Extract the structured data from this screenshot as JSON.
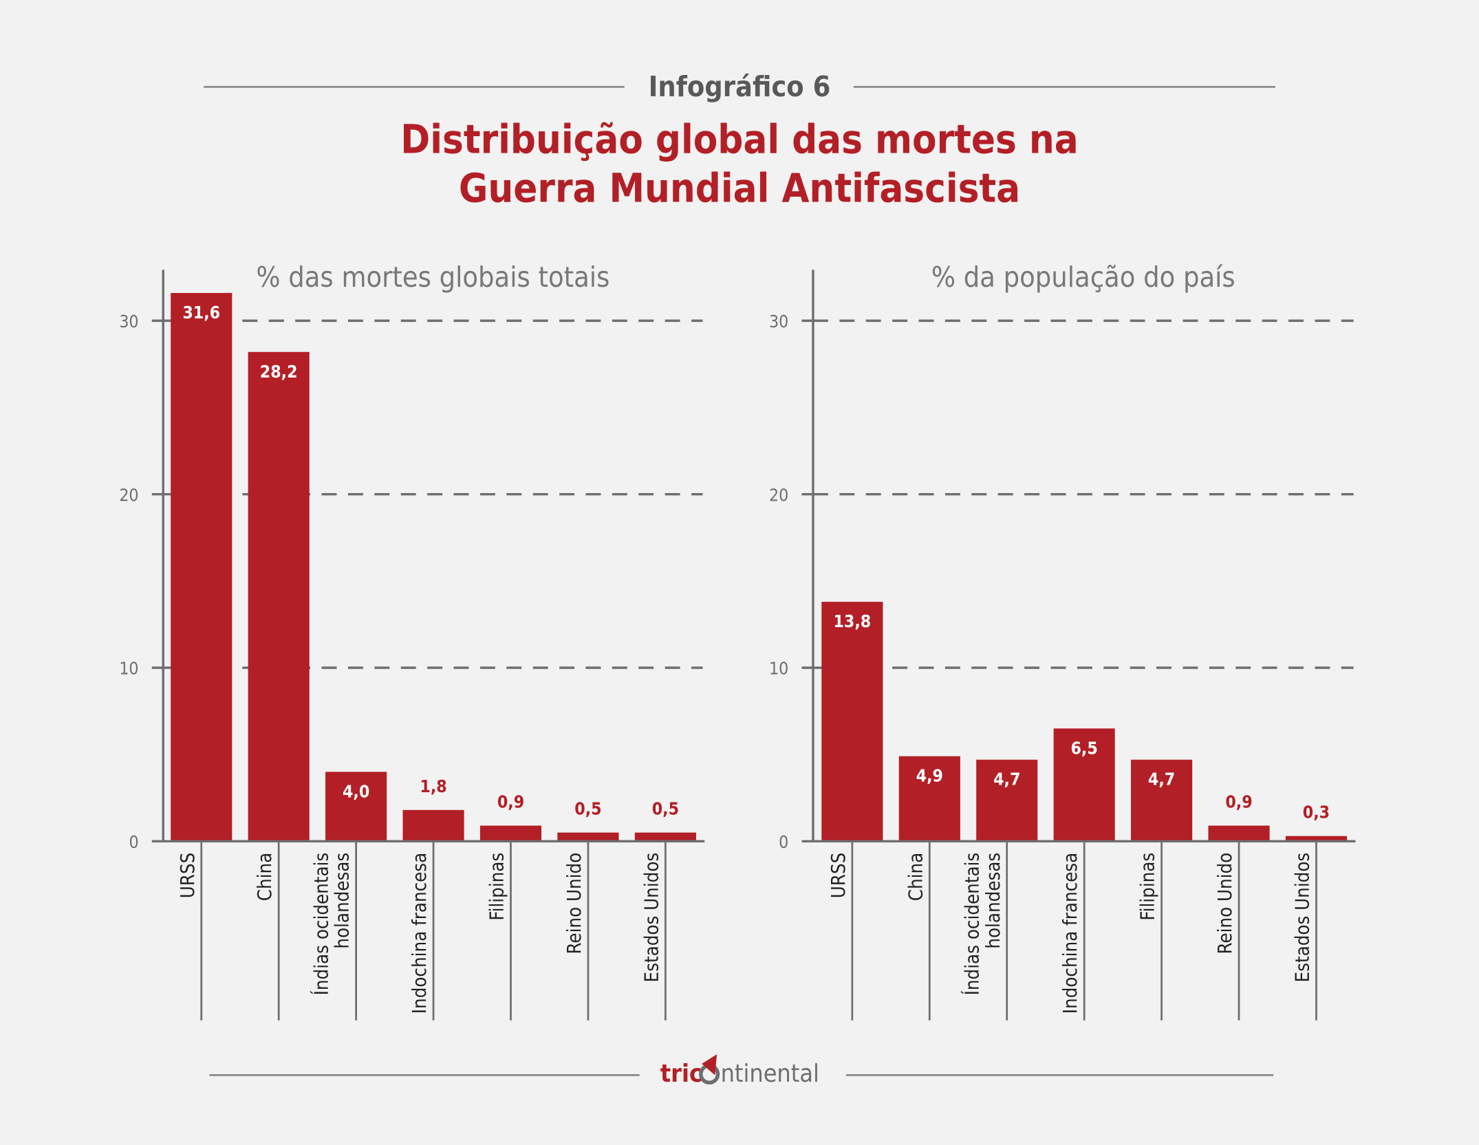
{
  "header": {
    "kicker": "Infográfico 6",
    "title_line1": "Distribuição global das mortes na",
    "title_line2": "Guerra Mundial Antifascista"
  },
  "colors": {
    "bar": "#b31f26",
    "title": "#b31f26",
    "text": "#6d6e70",
    "background": "#f1f2f1"
  },
  "footer": {
    "logo_text": "tricontinental"
  },
  "chart_data": [
    {
      "type": "bar",
      "title": "% das mortes globais totais",
      "categories": [
        "URSS",
        "China",
        "Índias ocidentais holandesas",
        "Indochina francesa",
        "Filipinas",
        "Reino Unido",
        "Estados Unidos"
      ],
      "category_lines": [
        [
          "URSS"
        ],
        [
          "China"
        ],
        [
          "Índias ocidentais",
          "holandesas"
        ],
        [
          "Indochina francesa"
        ],
        [
          "Filipinas"
        ],
        [
          "Reino Unido"
        ],
        [
          "Estados Unidos"
        ]
      ],
      "values": [
        31.6,
        28.2,
        4.0,
        1.8,
        0.9,
        0.5,
        0.5
      ],
      "data_labels": [
        "31,6",
        "28,2",
        "4,0",
        "1,8",
        "0,9",
        "0,5",
        "0,5"
      ],
      "yticks": [
        "0",
        "10",
        "20",
        "30"
      ],
      "ylim": [
        0,
        30
      ],
      "grid": "dashed horizontal"
    },
    {
      "type": "bar",
      "title": "% da população do país",
      "categories": [
        "URSS",
        "China",
        "Índias ocidentais holandesas",
        "Indochina francesa",
        "Filipinas",
        "Reino Unido",
        "Estados Unidos"
      ],
      "category_lines": [
        [
          "URSS"
        ],
        [
          "China"
        ],
        [
          "Índias ocidentais",
          "holandesas"
        ],
        [
          "Indochina francesa"
        ],
        [
          "Filipinas"
        ],
        [
          "Reino Unido"
        ],
        [
          "Estados Unidos"
        ]
      ],
      "values": [
        13.8,
        4.9,
        4.7,
        6.5,
        4.7,
        0.9,
        0.3
      ],
      "data_labels": [
        "13,8",
        "4,9",
        "4,7",
        "6,5",
        "4,7",
        "0,9",
        "0,3"
      ],
      "yticks": [
        "0",
        "10",
        "20",
        "30"
      ],
      "ylim": [
        0,
        30
      ],
      "grid": "dashed horizontal"
    }
  ]
}
